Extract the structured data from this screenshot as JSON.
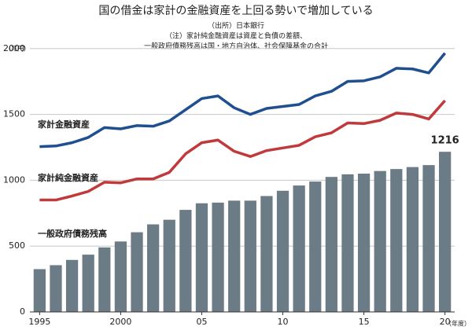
{
  "chart_data": {
    "type": "bar",
    "title": "国の借金は家計の金融資産を上回る勢いで増加している",
    "notes": [
      "（出所）日本銀行",
      "（注）家計純金融資産は資産と負債の差額、",
      "一般政府債務残高は国・地方自治体、社会保障基金の合計"
    ],
    "y_label": "（兆円）",
    "x_label": "（年度）",
    "x": [
      1995,
      1996,
      1997,
      1998,
      1999,
      2000,
      2001,
      2002,
      2003,
      2004,
      2005,
      2006,
      2007,
      2008,
      2009,
      2010,
      2011,
      2012,
      2013,
      2014,
      2015,
      2016,
      2017,
      2018,
      2019,
      2020
    ],
    "xlim": [
      1994.4,
      2020.6
    ],
    "xticks": [
      1995,
      2000,
      {
        "value": 2005,
        "label": "05"
      },
      {
        "value": 2010,
        "label": "10"
      },
      {
        "value": 2015,
        "label": "15"
      },
      {
        "value": 2020,
        "label": "20"
      }
    ],
    "ylim": [
      0,
      2100
    ],
    "yticks": [
      0,
      500,
      1000,
      1500,
      2000
    ],
    "grid": true,
    "series": [
      {
        "name": "一般政府債務残高",
        "type": "bar",
        "color": "#6c7c87",
        "show_last_value": true,
        "values": [
          325,
          355,
          395,
          435,
          490,
          535,
          605,
          665,
          700,
          775,
          825,
          830,
          845,
          845,
          880,
          920,
          960,
          990,
          1025,
          1045,
          1050,
          1070,
          1085,
          1100,
          1115,
          1216
        ]
      },
      {
        "name": "家計金融資産",
        "type": "line",
        "color": "#1f4f8f",
        "values": [
          1255,
          1260,
          1285,
          1325,
          1400,
          1390,
          1415,
          1410,
          1450,
          1535,
          1620,
          1640,
          1550,
          1500,
          1545,
          1560,
          1575,
          1640,
          1675,
          1750,
          1755,
          1785,
          1850,
          1845,
          1815,
          1965
        ]
      },
      {
        "name": "家計純金融資産",
        "type": "line",
        "color": "#c0393b",
        "values": [
          850,
          850,
          880,
          915,
          985,
          980,
          1010,
          1010,
          1060,
          1200,
          1285,
          1305,
          1220,
          1180,
          1225,
          1245,
          1265,
          1330,
          1360,
          1435,
          1430,
          1455,
          1510,
          1500,
          1465,
          1605
        ]
      }
    ]
  }
}
